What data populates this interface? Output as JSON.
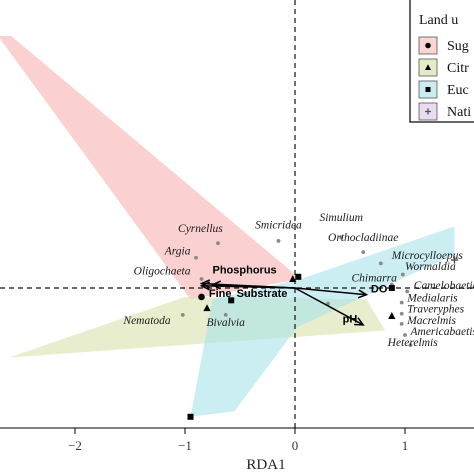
{
  "chart_data": {
    "type": "scatter",
    "xlabel": "RDA1",
    "ylabel": "",
    "xlim": [
      -2.7,
      1.45
    ],
    "ylim": [
      -1.55,
      2.6
    ],
    "x_ticks": [
      -2,
      -1,
      0,
      1
    ],
    "x_tick_labels": [
      "−2",
      "−1",
      "0",
      "1"
    ],
    "grid": false,
    "reference_lines": {
      "x": 0,
      "y": 0
    },
    "legend": {
      "title": "Land u",
      "placement": "top-right",
      "items": [
        {
          "label": "Sug",
          "marker": "circle",
          "fill": "#f9d5d3"
        },
        {
          "label": "Citr",
          "marker": "triangle",
          "fill": "#e3ebc5"
        },
        {
          "label": "Euc",
          "marker": "square",
          "fill": "#c8ecef"
        },
        {
          "label": "Nati",
          "marker": "plus",
          "fill": "#e9dcf2"
        }
      ]
    },
    "hulls": [
      {
        "group": "Sug",
        "color": "#f6b3b0",
        "points": [
          [
            -2.7,
            2.25
          ],
          [
            -2.58,
            2.25
          ],
          [
            0.05,
            0.08
          ],
          [
            -0.95,
            -0.1
          ]
        ]
      },
      {
        "group": "Citr",
        "color": "#d8e3ab",
        "points": [
          [
            -2.6,
            -0.62
          ],
          [
            -1.0,
            -0.08
          ],
          [
            0.65,
            -0.1
          ],
          [
            0.82,
            -0.38
          ]
        ]
      },
      {
        "group": "Euc",
        "color": "#a9e3ea",
        "points": [
          [
            -0.95,
            -1.15
          ],
          [
            -0.75,
            -0.1
          ],
          [
            0.05,
            0.08
          ],
          [
            1.45,
            0.55
          ],
          [
            1.45,
            0.3
          ],
          [
            0.02,
            -0.35
          ],
          [
            -0.55,
            -1.1
          ]
        ]
      }
    ],
    "sites": [
      {
        "group": "Sug",
        "x": -0.85,
        "y": -0.08
      },
      {
        "group": "Citr",
        "x": -0.8,
        "y": -0.18
      },
      {
        "group": "Citr",
        "x": -0.02,
        "y": 0.08
      },
      {
        "group": "Citr",
        "x": 0.88,
        "y": -0.25
      },
      {
        "group": "Euc",
        "x": -0.95,
        "y": -1.15
      },
      {
        "group": "Euc",
        "x": -0.58,
        "y": -0.11
      },
      {
        "group": "Euc",
        "x": 0.03,
        "y": 0.1
      },
      {
        "group": "Euc",
        "x": 0.88,
        "y": 0.0
      },
      {
        "group": "Nati",
        "x": 1.45,
        "y": 0.25
      }
    ],
    "species": [
      {
        "name": "Cyrnellus",
        "x": -0.7,
        "y": 0.4,
        "lx": -0.86,
        "ly": 0.5,
        "anchor": "middle"
      },
      {
        "name": "Smicridea",
        "x": -0.15,
        "y": 0.42,
        "lx": -0.15,
        "ly": 0.53,
        "anchor": "middle"
      },
      {
        "name": "Simulium",
        "x": 0.42,
        "y": 0.45,
        "lx": 0.42,
        "ly": 0.6,
        "anchor": "middle"
      },
      {
        "name": "Argia",
        "x": -0.9,
        "y": 0.27,
        "lx": -0.95,
        "ly": 0.3,
        "anchor": "end"
      },
      {
        "name": "Oligochaeta",
        "x": -0.85,
        "y": 0.08,
        "lx": -0.95,
        "ly": 0.12,
        "anchor": "end"
      },
      {
        "name": "Orthocladiinae",
        "x": 0.62,
        "y": 0.32,
        "lx": 0.62,
        "ly": 0.42,
        "anchor": "middle"
      },
      {
        "name": "Microcylloepus",
        "x": 0.78,
        "y": 0.22,
        "lx": 0.88,
        "ly": 0.26,
        "anchor": "start"
      },
      {
        "name": "Wormaldia",
        "x": 0.98,
        "y": 0.12,
        "lx": 1.0,
        "ly": 0.16,
        "anchor": "start"
      },
      {
        "name": "Chimarra",
        "x": 0.88,
        "y": 0.03,
        "lx": 0.72,
        "ly": 0.06,
        "anchor": "middle"
      },
      {
        "name": "Camelobaetidius",
        "x": 1.02,
        "y": -0.03,
        "lx": 1.08,
        "ly": -0.01,
        "anchor": "start"
      },
      {
        "name": "Medialaris",
        "x": 0.97,
        "y": -0.13,
        "lx": 1.02,
        "ly": -0.12,
        "anchor": "start"
      },
      {
        "name": "Traveryphes",
        "x": 0.97,
        "y": -0.23,
        "lx": 1.02,
        "ly": -0.22,
        "anchor": "start"
      },
      {
        "name": "Macrelmis",
        "x": 0.97,
        "y": -0.32,
        "lx": 1.02,
        "ly": -0.32,
        "anchor": "start"
      },
      {
        "name": "Americabaetis",
        "x": 1.0,
        "y": -0.42,
        "lx": 1.05,
        "ly": -0.42,
        "anchor": "start"
      },
      {
        "name": "Heterelmis",
        "x": 1.05,
        "y": -0.51,
        "lx": 1.07,
        "ly": -0.52,
        "anchor": "middle"
      },
      {
        "name": "Nematoda",
        "x": -1.02,
        "y": -0.24,
        "lx": -1.13,
        "ly": -0.32,
        "anchor": "end"
      },
      {
        "name": "Bivalvia",
        "x": -0.63,
        "y": -0.24,
        "lx": -0.63,
        "ly": -0.34,
        "anchor": "middle"
      },
      {
        "name": "",
        "x": 0.3,
        "y": -0.14
      },
      {
        "name": "",
        "x": -0.45,
        "y": -0.05
      }
    ],
    "env_vectors": [
      {
        "name": "Phosphorus",
        "x": -0.85,
        "y": 0.04,
        "lx": -0.75,
        "ly": 0.13,
        "anchor": "start"
      },
      {
        "name": "Fine",
        "x": -0.75,
        "y": 0.03,
        "lx": -0.68,
        "ly": -0.08,
        "anchor": "middle"
      },
      {
        "name": "Substrate",
        "x": -0.85,
        "y": 0.02,
        "lx": -0.3,
        "ly": -0.08,
        "anchor": "middle"
      },
      {
        "name": "DO",
        "x": 0.65,
        "y": -0.06,
        "lx": 0.69,
        "ly": -0.04,
        "anchor": "start"
      },
      {
        "name": "pH",
        "x": 0.62,
        "y": -0.33,
        "lx": 0.5,
        "ly": -0.31,
        "anchor": "middle"
      }
    ]
  }
}
